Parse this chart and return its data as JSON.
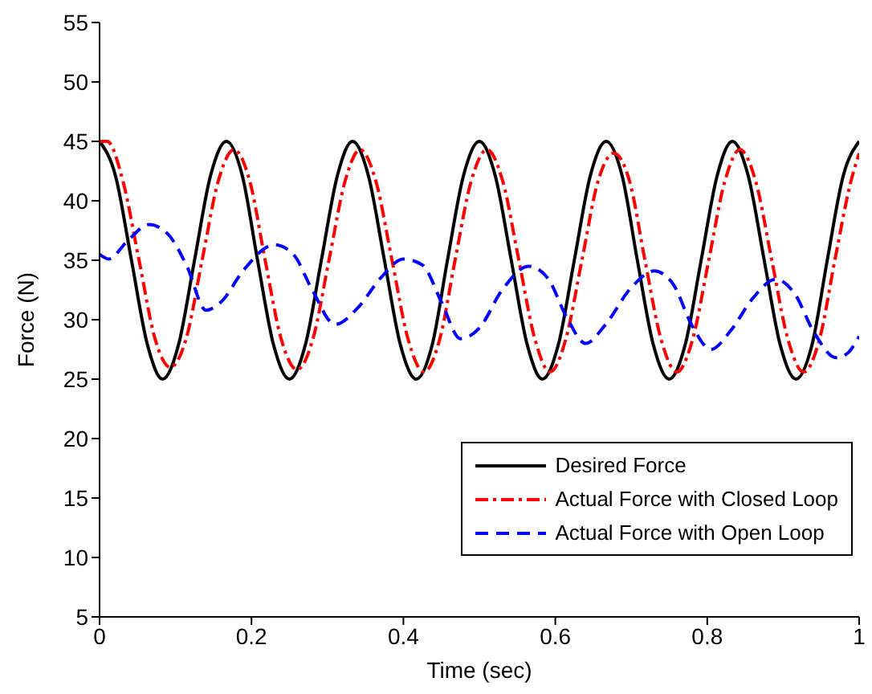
{
  "chart_data": {
    "type": "line",
    "xlabel": "Time (sec)",
    "ylabel": "Force (N)",
    "xlim": [
      0,
      1
    ],
    "ylim": [
      5,
      55
    ],
    "xticks": [
      0,
      0.2,
      0.4,
      0.6,
      0.8,
      1
    ],
    "yticks": [
      5,
      10,
      15,
      20,
      25,
      30,
      35,
      40,
      45,
      50,
      55
    ],
    "grid": false,
    "legend": "bottom right",
    "marker": "none",
    "series": [
      {
        "name": "Desired Force",
        "color": "#000000",
        "line_style": "solid",
        "x": [
          0,
          0.021,
          0.042,
          0.063,
          0.083,
          0.104,
          0.125,
          0.146,
          0.167,
          0.188,
          0.208,
          0.229,
          0.25,
          0.271,
          0.292,
          0.313,
          0.333,
          0.354,
          0.375,
          0.396,
          0.417,
          0.438,
          0.458,
          0.479,
          0.5,
          0.521,
          0.542,
          0.563,
          0.583,
          0.604,
          0.625,
          0.646,
          0.667,
          0.688,
          0.708,
          0.729,
          0.75,
          0.771,
          0.792,
          0.813,
          0.833,
          0.854,
          0.875,
          0.896,
          0.917,
          0.938,
          0.958,
          0.979,
          1
        ],
        "values": [
          45,
          42.1,
          35,
          27.9,
          25,
          27.9,
          35,
          42.1,
          45,
          42.1,
          35,
          27.9,
          25,
          27.9,
          35,
          42.1,
          45,
          42.1,
          35,
          27.9,
          25,
          27.9,
          35,
          42.1,
          45,
          42.1,
          35,
          27.9,
          25,
          27.9,
          35,
          42.1,
          45,
          42.1,
          35,
          27.9,
          25,
          27.9,
          35,
          42.1,
          45,
          42.1,
          35,
          27.9,
          25,
          27.9,
          35,
          42.1,
          45
        ]
      },
      {
        "name": "Actual Force with Closed Loop",
        "color": "#ff0000",
        "line_style": "dashdot",
        "x": [
          0,
          0.01,
          0.031,
          0.052,
          0.073,
          0.093,
          0.114,
          0.135,
          0.156,
          0.177,
          0.198,
          0.218,
          0.239,
          0.26,
          0.281,
          0.302,
          0.323,
          0.343,
          0.364,
          0.385,
          0.406,
          0.427,
          0.448,
          0.468,
          0.489,
          0.51,
          0.531,
          0.552,
          0.573,
          0.593,
          0.614,
          0.635,
          0.656,
          0.677,
          0.698,
          0.718,
          0.739,
          0.76,
          0.781,
          0.802,
          0.823,
          0.843,
          0.864,
          0.885,
          0.906,
          0.927,
          0.948,
          0.968,
          0.989,
          1
        ],
        "values": [
          45,
          45,
          41.6,
          35,
          28.4,
          26,
          28.4,
          35,
          41.6,
          44.3,
          41.6,
          35,
          28.4,
          25.8,
          28.4,
          35,
          41.6,
          44.3,
          41.6,
          35,
          28.4,
          25.6,
          28.4,
          35,
          41.6,
          44.3,
          41.6,
          35,
          28.4,
          25.6,
          28.4,
          35,
          41.6,
          44,
          41.6,
          35,
          28.4,
          25.6,
          28.4,
          35,
          41.6,
          44.3,
          41.6,
          35,
          28.4,
          25.6,
          28.4,
          35,
          41.6,
          44
        ]
      },
      {
        "name": "Actual Force with Open Loop",
        "color": "#0000ff",
        "line_style": "dashed",
        "x": [
          0,
          0.012,
          0.035,
          0.065,
          0.09,
          0.115,
          0.14,
          0.16,
          0.19,
          0.23,
          0.255,
          0.28,
          0.31,
          0.34,
          0.37,
          0.4,
          0.425,
          0.45,
          0.475,
          0.5,
          0.53,
          0.565,
          0.59,
          0.615,
          0.64,
          0.665,
          0.7,
          0.73,
          0.755,
          0.78,
          0.805,
          0.83,
          0.86,
          0.89,
          0.915,
          0.94,
          0.97,
          0.985,
          1
        ],
        "values": [
          35.5,
          35.1,
          36.5,
          38,
          37.2,
          34.5,
          30.8,
          31.5,
          34.2,
          36.3,
          35.5,
          32.5,
          29.6,
          31,
          33.5,
          35.1,
          34.6,
          31.5,
          28.4,
          29.3,
          32.5,
          34.5,
          33.5,
          30.2,
          28,
          29.5,
          32.7,
          34.1,
          33,
          29.5,
          27.5,
          29,
          31.8,
          33.4,
          32.2,
          29,
          26.8,
          27.2,
          28.6
        ]
      }
    ]
  }
}
